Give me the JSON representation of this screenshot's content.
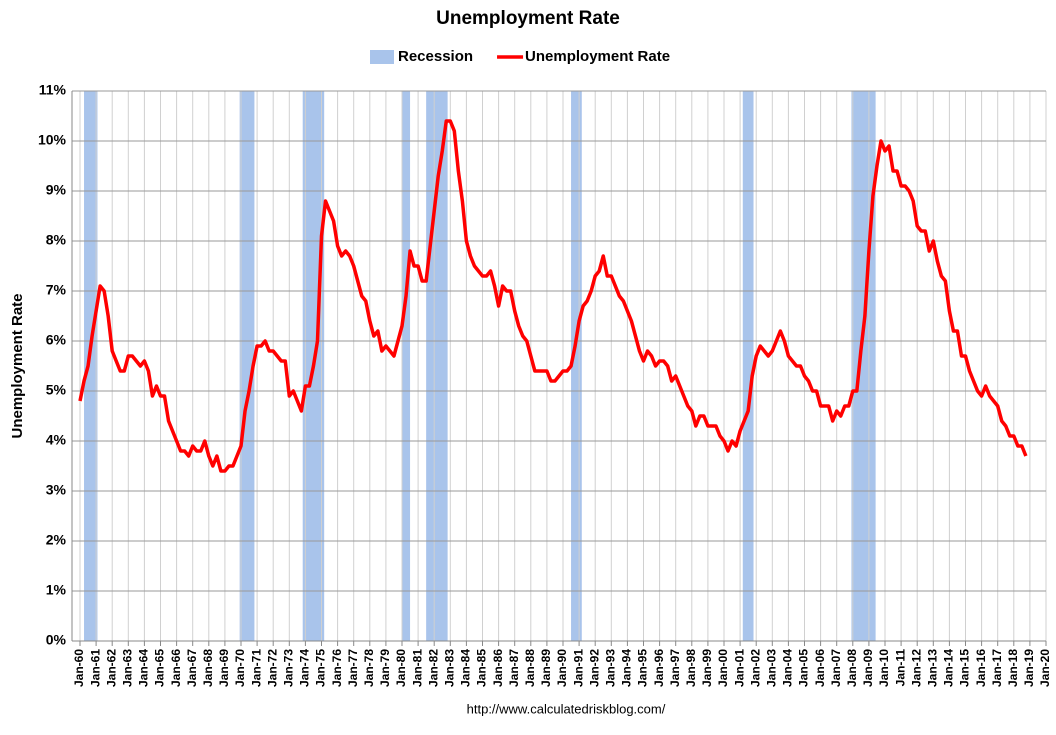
{
  "chart_data": {
    "type": "line",
    "title": "Unemployment Rate",
    "y_label": "Unemployment Rate",
    "source": "http://www.calculatedriskblog.com/",
    "grid": true,
    "legend": "top",
    "xlim": [
      "Jan-60",
      "Jan-20"
    ],
    "xticks": [
      "Jan-60",
      "Jan-61",
      "Jan-62",
      "Jan-63",
      "Jan-64",
      "Jan-65",
      "Jan-66",
      "Jan-67",
      "Jan-68",
      "Jan-69",
      "Jan-70",
      "Jan-71",
      "Jan-72",
      "Jan-73",
      "Jan-74",
      "Jan-75",
      "Jan-76",
      "Jan-77",
      "Jan-78",
      "Jan-79",
      "Jan-80",
      "Jan-81",
      "Jan-82",
      "Jan-83",
      "Jan-84",
      "Jan-85",
      "Jan-86",
      "Jan-87",
      "Jan-88",
      "Jan-89",
      "Jan-90",
      "Jan-91",
      "Jan-92",
      "Jan-93",
      "Jan-94",
      "Jan-95",
      "Jan-96",
      "Jan-97",
      "Jan-98",
      "Jan-99",
      "Jan-00",
      "Jan-01",
      "Jan-02",
      "Jan-03",
      "Jan-04",
      "Jan-05",
      "Jan-06",
      "Jan-07",
      "Jan-08",
      "Jan-09",
      "Jan-10",
      "Jan-11",
      "Jan-12",
      "Jan-13",
      "Jan-14",
      "Jan-15",
      "Jan-16",
      "Jan-17",
      "Jan-18",
      "Jan-19",
      "Jan-20"
    ],
    "ylim": [
      0,
      11
    ],
    "yticks": [
      {
        "value": 0,
        "label": "0%"
      },
      {
        "value": 1,
        "label": "1%"
      },
      {
        "value": 2,
        "label": "2%"
      },
      {
        "value": 3,
        "label": "3%"
      },
      {
        "value": 4,
        "label": "4%"
      },
      {
        "value": 5,
        "label": "5%"
      },
      {
        "value": 6,
        "label": "6%"
      },
      {
        "value": 7,
        "label": "7%"
      },
      {
        "value": 8,
        "label": "8%"
      },
      {
        "value": 9,
        "label": "9%"
      },
      {
        "value": 10,
        "label": "10%"
      },
      {
        "value": 11,
        "label": "11%"
      }
    ],
    "x": [
      "Jan-60",
      "Apr-60",
      "Jul-60",
      "Oct-60",
      "Jan-61",
      "Apr-61",
      "Jul-61",
      "Oct-61",
      "Jan-62",
      "Apr-62",
      "Jul-62",
      "Oct-62",
      "Jan-63",
      "Apr-63",
      "Jul-63",
      "Oct-63",
      "Jan-64",
      "Apr-64",
      "Jul-64",
      "Oct-64",
      "Jan-65",
      "Apr-65",
      "Jul-65",
      "Oct-65",
      "Jan-66",
      "Apr-66",
      "Jul-66",
      "Oct-66",
      "Jan-67",
      "Apr-67",
      "Jul-67",
      "Oct-67",
      "Jan-68",
      "Apr-68",
      "Jul-68",
      "Oct-68",
      "Jan-69",
      "Apr-69",
      "Jul-69",
      "Oct-69",
      "Jan-70",
      "Apr-70",
      "Jul-70",
      "Oct-70",
      "Jan-71",
      "Apr-71",
      "Jul-71",
      "Oct-71",
      "Jan-72",
      "Apr-72",
      "Jul-72",
      "Oct-72",
      "Jan-73",
      "Apr-73",
      "Jul-73",
      "Oct-73",
      "Jan-74",
      "Apr-74",
      "Jul-74",
      "Oct-74",
      "Jan-75",
      "Apr-75",
      "Jul-75",
      "Oct-75",
      "Jan-76",
      "Apr-76",
      "Jul-76",
      "Oct-76",
      "Jan-77",
      "Apr-77",
      "Jul-77",
      "Oct-77",
      "Jan-78",
      "Apr-78",
      "Jul-78",
      "Oct-78",
      "Jan-79",
      "Apr-79",
      "Jul-79",
      "Oct-79",
      "Jan-80",
      "Apr-80",
      "Jul-80",
      "Oct-80",
      "Jan-81",
      "Apr-81",
      "Jul-81",
      "Oct-81",
      "Jan-82",
      "Apr-82",
      "Jul-82",
      "Oct-82",
      "Jan-83",
      "Apr-83",
      "Jul-83",
      "Oct-83",
      "Jan-84",
      "Apr-84",
      "Jul-84",
      "Oct-84",
      "Jan-85",
      "Apr-85",
      "Jul-85",
      "Oct-85",
      "Jan-86",
      "Apr-86",
      "Jul-86",
      "Oct-86",
      "Jan-87",
      "Apr-87",
      "Jul-87",
      "Oct-87",
      "Jan-88",
      "Apr-88",
      "Jul-88",
      "Oct-88",
      "Jan-89",
      "Apr-89",
      "Jul-89",
      "Oct-89",
      "Jan-90",
      "Apr-90",
      "Jul-90",
      "Oct-90",
      "Jan-91",
      "Apr-91",
      "Jul-91",
      "Oct-91",
      "Jan-92",
      "Apr-92",
      "Jul-92",
      "Oct-92",
      "Jan-93",
      "Apr-93",
      "Jul-93",
      "Oct-93",
      "Jan-94",
      "Apr-94",
      "Jul-94",
      "Oct-94",
      "Jan-95",
      "Apr-95",
      "Jul-95",
      "Oct-95",
      "Jan-96",
      "Apr-96",
      "Jul-96",
      "Oct-96",
      "Jan-97",
      "Apr-97",
      "Jul-97",
      "Oct-97",
      "Jan-98",
      "Apr-98",
      "Jul-98",
      "Oct-98",
      "Jan-99",
      "Apr-99",
      "Jul-99",
      "Oct-99",
      "Jan-00",
      "Apr-00",
      "Jul-00",
      "Oct-00",
      "Jan-01",
      "Apr-01",
      "Jul-01",
      "Oct-01",
      "Jan-02",
      "Apr-02",
      "Jul-02",
      "Oct-02",
      "Jan-03",
      "Apr-03",
      "Jul-03",
      "Oct-03",
      "Jan-04",
      "Apr-04",
      "Jul-04",
      "Oct-04",
      "Jan-05",
      "Apr-05",
      "Jul-05",
      "Oct-05",
      "Jan-06",
      "Apr-06",
      "Jul-06",
      "Oct-06",
      "Jan-07",
      "Apr-07",
      "Jul-07",
      "Oct-07",
      "Jan-08",
      "Apr-08",
      "Jul-08",
      "Oct-08",
      "Jan-09",
      "Apr-09",
      "Jul-09",
      "Oct-09",
      "Jan-10",
      "Apr-10",
      "Jul-10",
      "Oct-10",
      "Jan-11",
      "Apr-11",
      "Jul-11",
      "Oct-11",
      "Jan-12",
      "Apr-12",
      "Jul-12",
      "Oct-12",
      "Jan-13",
      "Apr-13",
      "Jul-13",
      "Oct-13",
      "Jan-14",
      "Apr-14",
      "Jul-14",
      "Oct-14",
      "Jan-15",
      "Apr-15",
      "Jul-15",
      "Oct-15",
      "Jan-16",
      "Apr-16",
      "Jul-16",
      "Oct-16",
      "Jan-17",
      "Apr-17",
      "Jul-17",
      "Oct-17",
      "Jan-18",
      "Apr-18",
      "Jul-18",
      "Oct-18"
    ],
    "series": [
      {
        "name": "Recession",
        "color": "#a9c4eb",
        "type": "band",
        "ranges": [
          [
            "Apr-60",
            "Feb-61"
          ],
          [
            "Dec-69",
            "Nov-70"
          ],
          [
            "Nov-73",
            "Mar-75"
          ],
          [
            "Jan-80",
            "Jul-80"
          ],
          [
            "Jul-81",
            "Nov-82"
          ],
          [
            "Jul-90",
            "Mar-91"
          ],
          [
            "Mar-01",
            "Nov-01"
          ],
          [
            "Dec-07",
            "Jun-09"
          ]
        ]
      },
      {
        "name": "Unemployment Rate",
        "color": "#ff0000",
        "type": "line",
        "values": [
          4.8,
          5.2,
          5.5,
          6.1,
          6.6,
          7.1,
          7.0,
          6.5,
          5.8,
          5.6,
          5.4,
          5.4,
          5.7,
          5.7,
          5.6,
          5.5,
          5.6,
          5.4,
          4.9,
          5.1,
          4.9,
          4.9,
          4.4,
          4.2,
          4.0,
          3.8,
          3.8,
          3.7,
          3.9,
          3.8,
          3.8,
          4.0,
          3.7,
          3.5,
          3.7,
          3.4,
          3.4,
          3.5,
          3.5,
          3.7,
          3.9,
          4.6,
          5.0,
          5.5,
          5.9,
          5.9,
          6.0,
          5.8,
          5.8,
          5.7,
          5.6,
          5.6,
          4.9,
          5.0,
          4.8,
          4.6,
          5.1,
          5.1,
          5.5,
          6.0,
          8.1,
          8.8,
          8.6,
          8.4,
          7.9,
          7.7,
          7.8,
          7.7,
          7.5,
          7.2,
          6.9,
          6.8,
          6.4,
          6.1,
          6.2,
          5.8,
          5.9,
          5.8,
          5.7,
          6.0,
          6.3,
          6.9,
          7.8,
          7.5,
          7.5,
          7.2,
          7.2,
          7.9,
          8.6,
          9.3,
          9.8,
          10.4,
          10.4,
          10.2,
          9.4,
          8.8,
          8.0,
          7.7,
          7.5,
          7.4,
          7.3,
          7.3,
          7.4,
          7.1,
          6.7,
          7.1,
          7.0,
          7.0,
          6.6,
          6.3,
          6.1,
          6.0,
          5.7,
          5.4,
          5.4,
          5.4,
          5.4,
          5.2,
          5.2,
          5.3,
          5.4,
          5.4,
          5.5,
          5.9,
          6.4,
          6.7,
          6.8,
          7.0,
          7.3,
          7.4,
          7.7,
          7.3,
          7.3,
          7.1,
          6.9,
          6.8,
          6.6,
          6.4,
          6.1,
          5.8,
          5.6,
          5.8,
          5.7,
          5.5,
          5.6,
          5.6,
          5.5,
          5.2,
          5.3,
          5.1,
          4.9,
          4.7,
          4.6,
          4.3,
          4.5,
          4.5,
          4.3,
          4.3,
          4.3,
          4.1,
          4.0,
          3.8,
          4.0,
          3.9,
          4.2,
          4.4,
          4.6,
          5.3,
          5.7,
          5.9,
          5.8,
          5.7,
          5.8,
          6.0,
          6.2,
          6.0,
          5.7,
          5.6,
          5.5,
          5.5,
          5.3,
          5.2,
          5.0,
          5.0,
          4.7,
          4.7,
          4.7,
          4.4,
          4.6,
          4.5,
          4.7,
          4.7,
          5.0,
          5.0,
          5.8,
          6.5,
          7.8,
          8.9,
          9.5,
          10.0,
          9.8,
          9.9,
          9.4,
          9.4,
          9.1,
          9.1,
          9.0,
          8.8,
          8.3,
          8.2,
          8.2,
          7.8,
          8.0,
          7.6,
          7.3,
          7.2,
          6.6,
          6.2,
          6.2,
          5.7,
          5.7,
          5.4,
          5.2,
          5.0,
          4.9,
          5.1,
          4.9,
          4.8,
          4.7,
          4.4,
          4.3,
          4.1,
          4.1,
          3.9,
          3.9,
          3.7
        ]
      }
    ]
  }
}
